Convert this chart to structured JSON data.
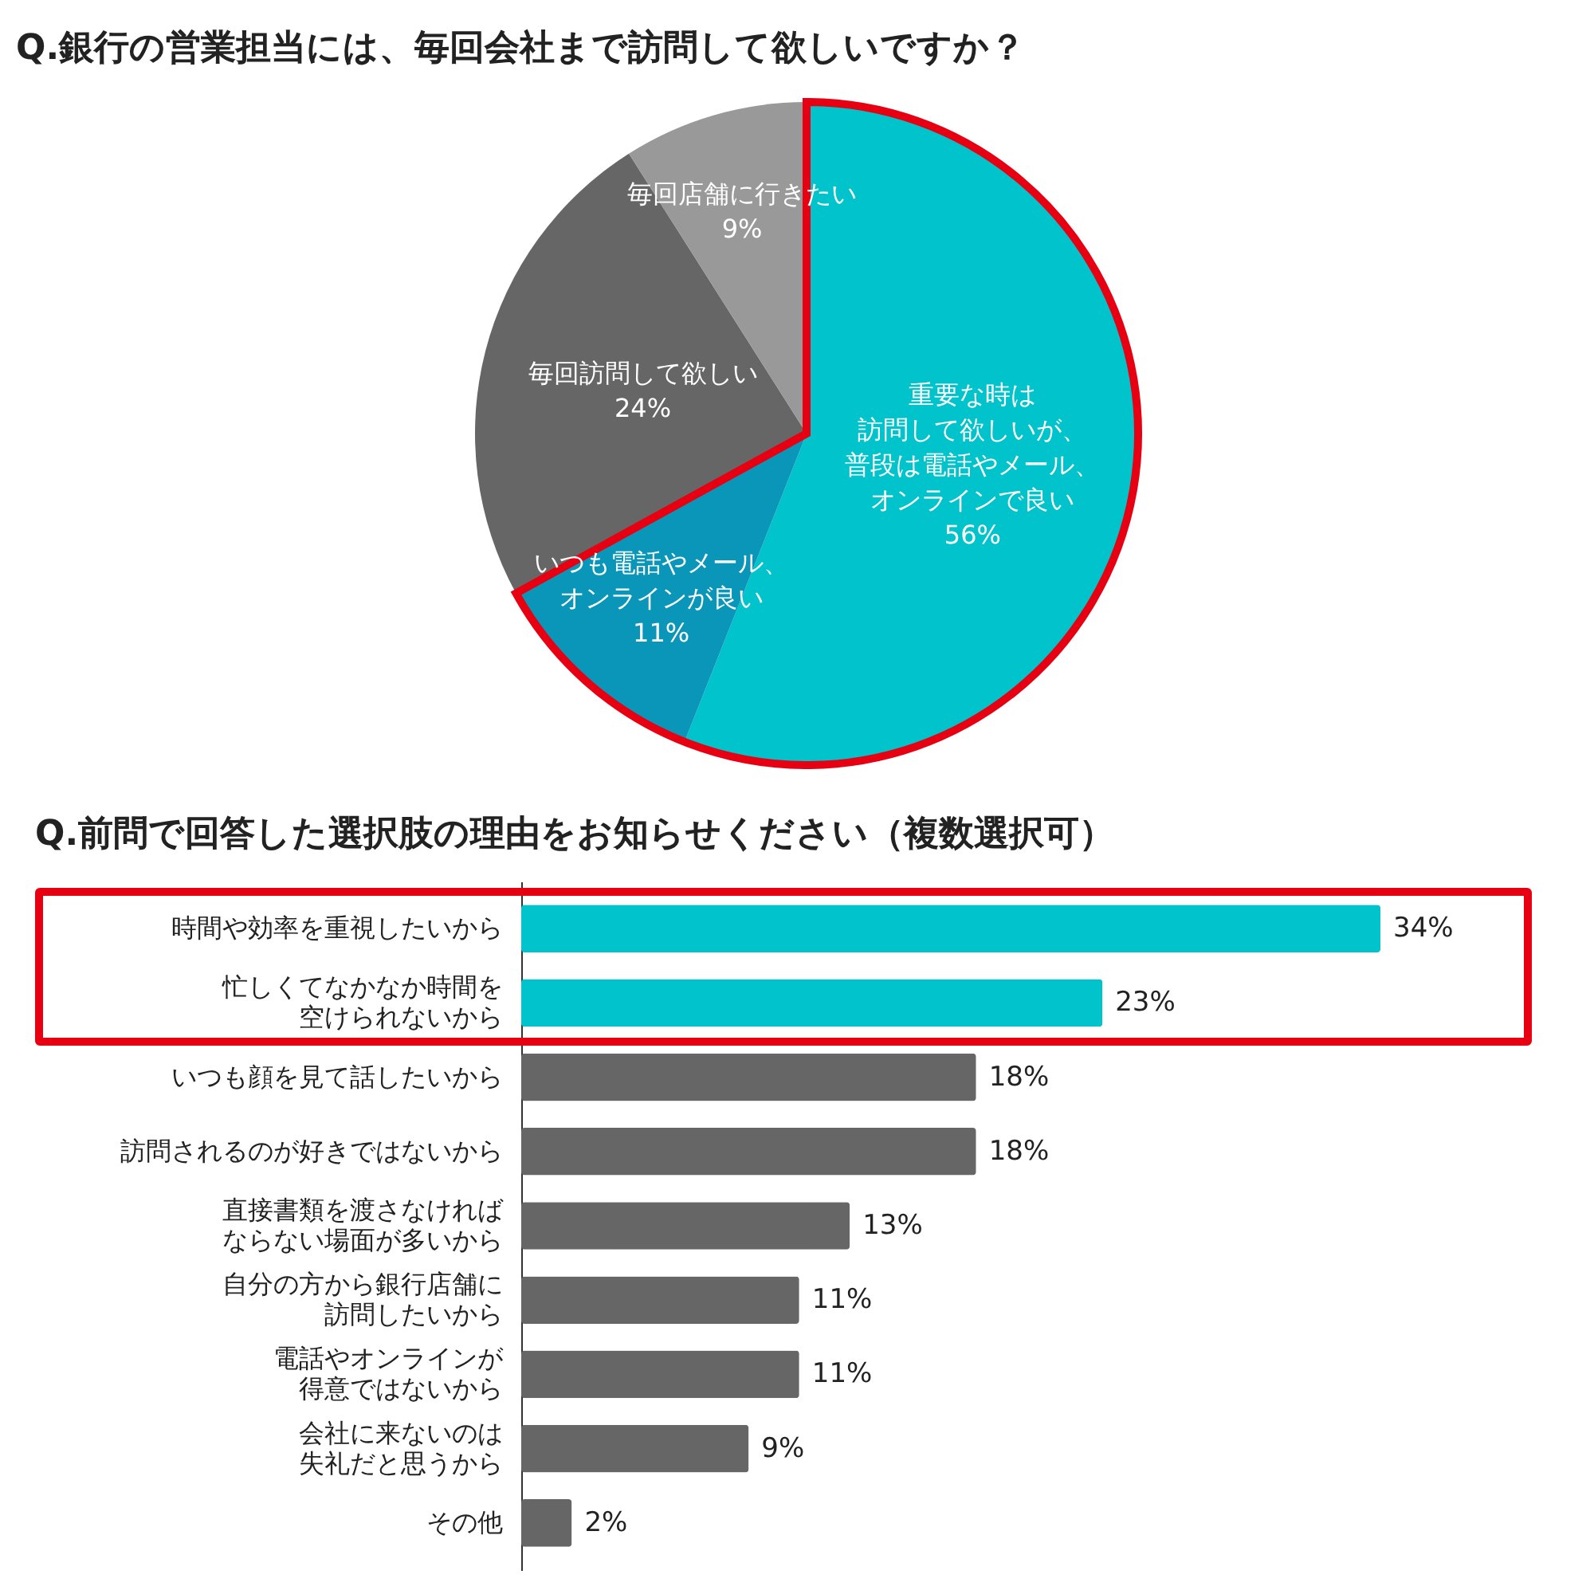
{
  "chart_data": [
    {
      "type": "pie",
      "title": "Q.銀行の営業担当には、毎回会社まで訪問して欲しいですか？",
      "categories": [
        "重要な時は訪問して欲しいが、普段は電話やメール、オンラインで良い",
        "いつも電話やメール、オンラインが良い",
        "毎回訪問して欲しい",
        "毎回店舗に行きたい"
      ],
      "values": [
        56,
        11,
        24,
        9
      ],
      "value_labels": [
        "56%",
        "11%",
        "24%",
        "9%"
      ],
      "colors": [
        "#00c3cb",
        "#0a96b9",
        "#666666",
        "#999999"
      ]
    },
    {
      "type": "bar",
      "orientation": "horizontal",
      "title": "Q.前問で回答した選択肢の理由をお知らせください（複数選択可）",
      "categories": [
        "時間や効率を重視したいから",
        "忙しくてなかなか時間を空けられないから",
        "いつも顔を見て話したいから",
        "訪問されるのが好きではないから",
        "直接書類を渡さなければならない場面が多いから",
        "自分の方から銀行店舗に訪問したいから",
        "電話やオンラインが得意ではないから",
        "会社に来ないのは失礼だと思うから",
        "その他"
      ],
      "values": [
        34,
        23,
        18,
        18,
        13,
        11,
        11,
        9,
        2
      ],
      "value_labels": [
        "34%",
        "23%",
        "18%",
        "18%",
        "13%",
        "11%",
        "11%",
        "9%",
        "2%"
      ],
      "colors": [
        "#00c3cb",
        "#00c3cb",
        "#666666",
        "#666666",
        "#666666",
        "#666666",
        "#666666",
        "#666666",
        "#666666"
      ]
    }
  ]
}
